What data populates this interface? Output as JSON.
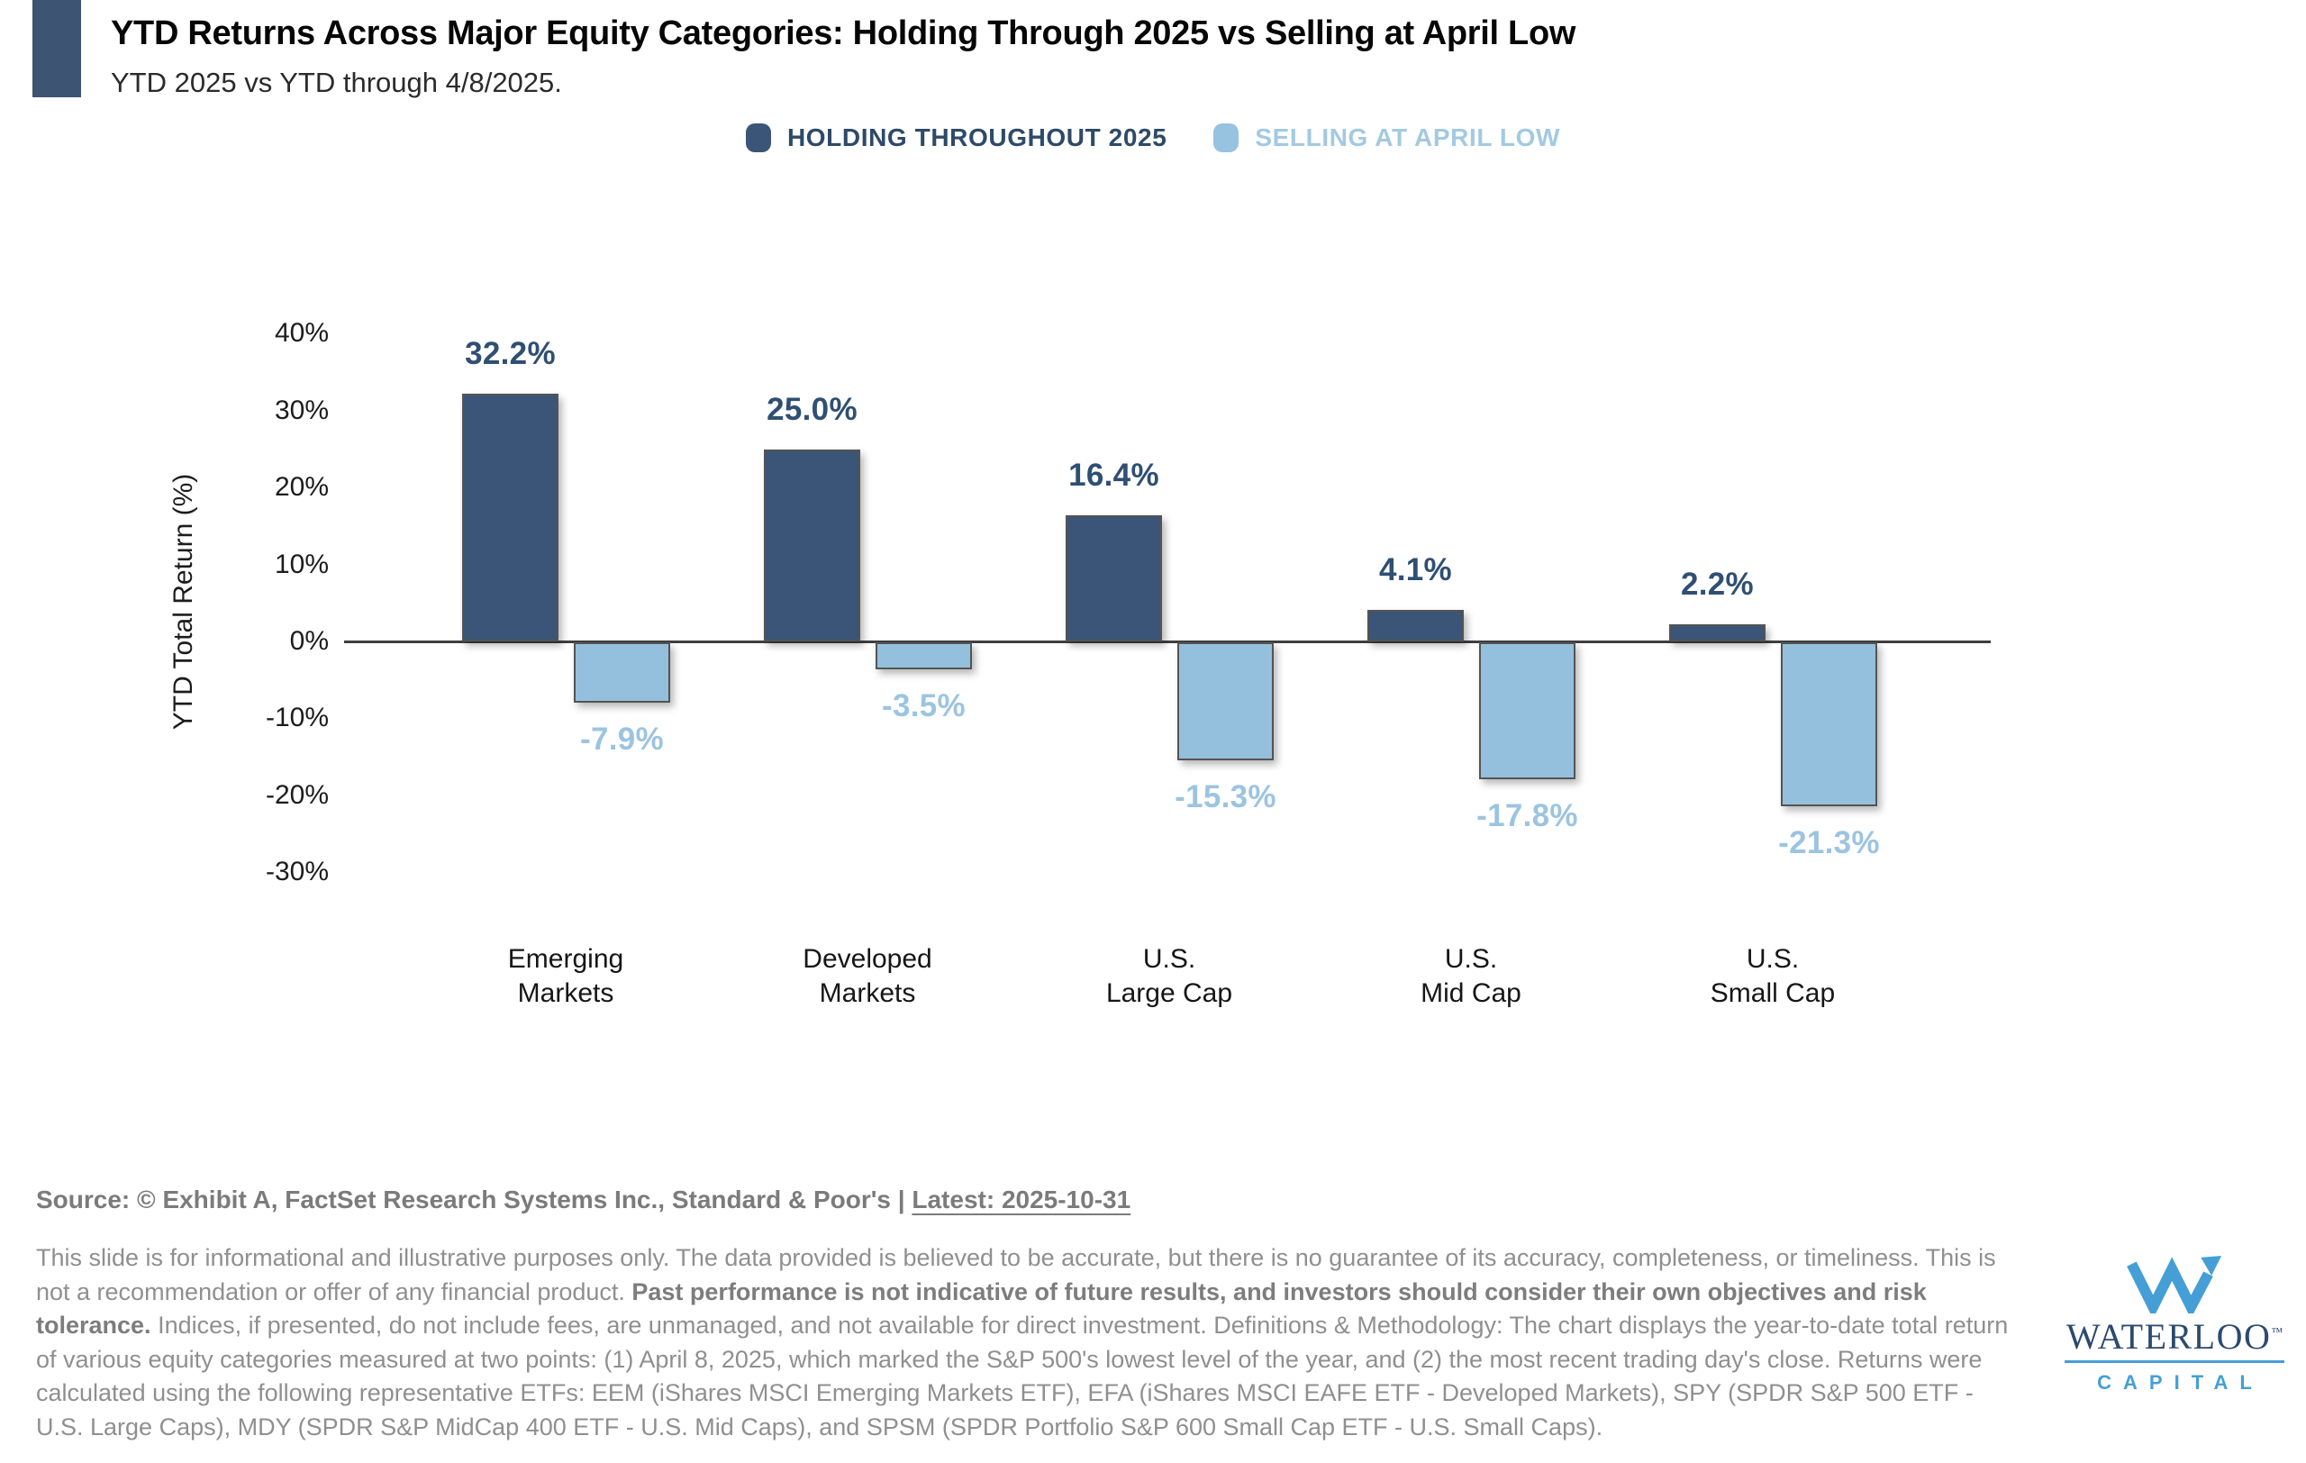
{
  "header": {
    "title": "YTD Returns Across Major Equity Categories: Holding Through 2025 vs Selling at April Low",
    "subtitle": "YTD 2025 vs YTD through 4/8/2025."
  },
  "legend": {
    "items": [
      {
        "label": "HOLDING THROUGHOUT 2025",
        "color": "#3a5577",
        "text_color": "#2e4a68"
      },
      {
        "label": "SELLING AT APRIL LOW",
        "color": "#97c3e0",
        "text_color": "#a3c9e3"
      }
    ]
  },
  "chart_data": {
    "type": "bar",
    "title": "YTD Returns Across Major Equity Categories: Holding Through 2025 vs Selling at April Low",
    "categories": [
      "Emerging\nMarkets",
      "Developed\nMarkets",
      "U.S.\nLarge Cap",
      "U.S.\nMid Cap",
      "U.S.\nSmall Cap"
    ],
    "series": [
      {
        "name": "HOLDING THROUGHOUT 2025",
        "color": "#3a5577",
        "values": [
          32.2,
          25.0,
          16.4,
          4.1,
          2.2
        ]
      },
      {
        "name": "SELLING AT APRIL LOW",
        "color": "#94c0dd",
        "values": [
          -7.9,
          -3.5,
          -15.3,
          -17.8,
          -21.3
        ]
      }
    ],
    "value_labels": {
      "holding": [
        "32.2%",
        "25.0%",
        "16.4%",
        "4.1%",
        "2.2%"
      ],
      "selling": [
        "-7.9%",
        "-3.5%",
        "-15.3%",
        "-17.8%",
        "-21.3%"
      ]
    },
    "xlabel": "",
    "ylabel": "YTD Total Return (%)",
    "ylim": [
      -30,
      40
    ],
    "yticks": [
      40,
      30,
      20,
      10,
      0,
      -10,
      -20,
      -30
    ],
    "ytick_suffix": "%",
    "grid": false,
    "legend_position": "top"
  },
  "footer": {
    "source_prefix": "Source: © Exhibit A, FactSet Research Systems Inc., Standard & Poor's | ",
    "source_latest": "Latest: 2025-10-31",
    "disclaimer_pre": "This slide is for informational and illustrative purposes only. The data provided is believed to be accurate, but there is no guarantee of its accuracy, completeness, or timeliness. This is not a recommendation or offer of any financial product. ",
    "disclaimer_bold": "Past performance is not indicative of future results, and investors should consider their own objectives and risk tolerance.",
    "disclaimer_post": " Indices, if presented, do not include fees, are unmanaged, and not available for direct investment. Definitions & Methodology: The chart displays the year-to-date total return of various equity categories measured at two points: (1) April 8, 2025, which marked the S&P 500's lowest level of the year, and (2) the most recent trading day's close. Returns were calculated using the following representative ETFs: EEM (iShares MSCI Emerging Markets ETF), EFA (iShares MSCI EAFE ETF - Developed Markets), SPY (SPDR S&P 500 ETF - U.S. Large Caps), MDY (SPDR S&P MidCap 400 ETF - U.S. Mid Caps), and SPSM (SPDR Portfolio S&P 600 Small Cap ETF - U.S. Small Caps)."
  },
  "logo": {
    "wordmark": "WATERLOO",
    "tm": "™",
    "sub_label": "CAPITAL",
    "navy": "#2b4a6f",
    "blue": "#459fd6"
  },
  "colors": {
    "accent_bar": "#3d5573",
    "holding_bar": "#3a5577",
    "selling_bar": "#94c0dd",
    "holding_value_label": "#2f4f73",
    "selling_value_label": "#9cc4e1",
    "axis_line": "#3f3f3f",
    "bar_border": "#545454"
  }
}
